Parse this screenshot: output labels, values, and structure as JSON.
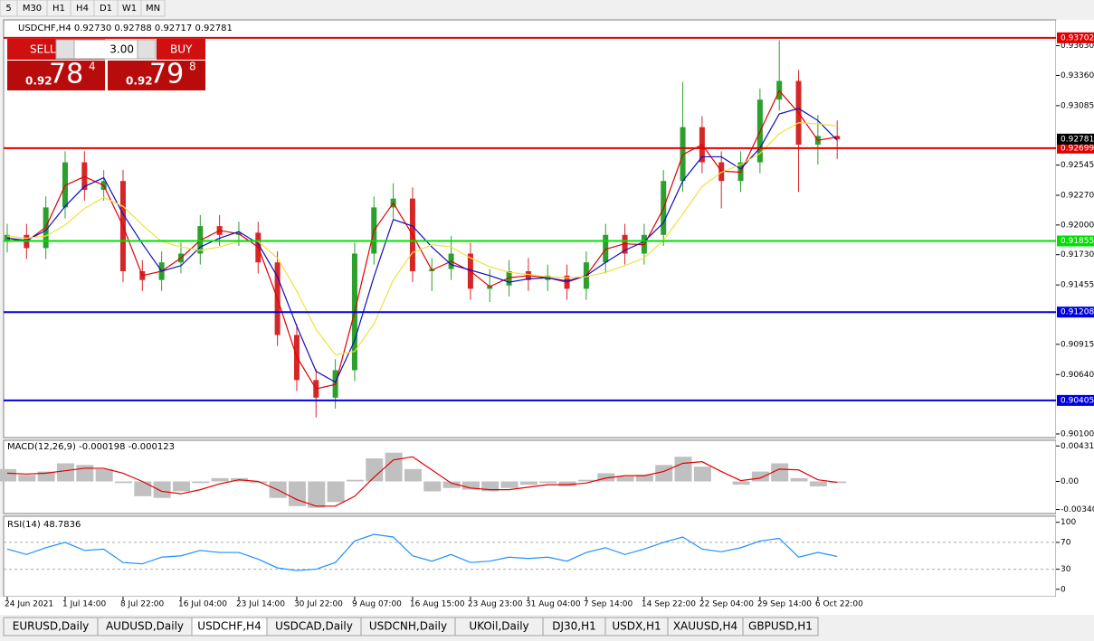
{
  "toolbar": {
    "timeframes": [
      "5",
      "M30",
      "H1",
      "H4",
      "D1",
      "W1",
      "MN"
    ]
  },
  "trade_panel": {
    "sell": "SELL",
    "buy": "BUY",
    "lot": "3.00",
    "sell_price": {
      "big": "0.92",
      "main": "78",
      "small": "4"
    },
    "buy_price": {
      "big": "0.92",
      "main": "79",
      "small": "8"
    }
  },
  "chart_data": [
    {
      "type": "candlestick",
      "title": "USDCHF,H4  0.92730 0.92788 0.92717 0.92781",
      "categories": [
        "24 Jun 2021",
        null,
        null,
        "1 Jul 14:00",
        null,
        null,
        "8 Jul 22:00",
        null,
        null,
        "16 Jul 04:00",
        null,
        null,
        "23 Jul 14:00",
        null,
        null,
        "30 Jul 22:00",
        null,
        null,
        "9 Aug 07:00",
        null,
        null,
        "16 Aug 15:00",
        null,
        null,
        "23 Aug 23:00",
        null,
        null,
        "31 Aug 04:00",
        null,
        null,
        "7 Sep 14:00",
        null,
        null,
        "14 Sep 22:00",
        null,
        null,
        "22 Sep 04:00",
        null,
        null,
        "29 Sep 14:00",
        null,
        null,
        "6 Oct 22:00",
        null
      ],
      "open": [
        0.9185,
        0.9191,
        0.9179,
        0.9216,
        0.9257,
        0.9232,
        0.924,
        0.9158,
        0.915,
        0.9166,
        0.9174,
        0.9199,
        0.9191,
        0.9193,
        0.9166,
        0.91,
        0.9059,
        0.9043,
        0.9068,
        0.9174,
        0.9216,
        0.9224,
        0.9158,
        0.916,
        0.9174,
        0.9142,
        0.9145,
        0.9158,
        0.915,
        0.9154,
        0.9142,
        0.9166,
        0.9191,
        0.9174,
        0.9191,
        0.924,
        0.9289,
        0.9257,
        0.924,
        0.9257,
        0.9314,
        0.9331,
        0.9273,
        0.9281
      ],
      "high": [
        0.9201,
        0.9201,
        0.9226,
        0.9267,
        0.9267,
        0.925,
        0.925,
        0.9168,
        0.9176,
        0.9184,
        0.9209,
        0.9209,
        0.9203,
        0.9203,
        0.9176,
        0.911,
        0.9069,
        0.9078,
        0.9184,
        0.9226,
        0.9238,
        0.9234,
        0.917,
        0.919,
        0.9184,
        0.916,
        0.9168,
        0.917,
        0.9164,
        0.9164,
        0.9176,
        0.9201,
        0.9201,
        0.9201,
        0.925,
        0.933,
        0.9299,
        0.9267,
        0.9267,
        0.9324,
        0.9368,
        0.9341,
        0.93,
        0.9295
      ],
      "low": [
        0.9175,
        0.9169,
        0.9169,
        0.9206,
        0.9222,
        0.9222,
        0.9148,
        0.914,
        0.914,
        0.9156,
        0.9164,
        0.9181,
        0.9181,
        0.9156,
        0.909,
        0.9049,
        0.9025,
        0.9033,
        0.9058,
        0.9164,
        0.9206,
        0.9148,
        0.914,
        0.915,
        0.9132,
        0.913,
        0.9135,
        0.914,
        0.914,
        0.9132,
        0.9132,
        0.9156,
        0.9164,
        0.9164,
        0.9181,
        0.923,
        0.9247,
        0.9215,
        0.923,
        0.9247,
        0.9304,
        0.923,
        0.9255,
        0.926
      ],
      "close": [
        0.9191,
        0.9179,
        0.9216,
        0.9257,
        0.9232,
        0.924,
        0.9158,
        0.915,
        0.9166,
        0.9174,
        0.9199,
        0.9191,
        0.9193,
        0.9166,
        0.91,
        0.9059,
        0.9043,
        0.9068,
        0.9174,
        0.9216,
        0.9224,
        0.9158,
        0.916,
        0.9174,
        0.9142,
        0.9145,
        0.9158,
        0.915,
        0.9154,
        0.9142,
        0.9166,
        0.9191,
        0.9174,
        0.9191,
        0.924,
        0.9289,
        0.9257,
        0.924,
        0.9257,
        0.9314,
        0.9331,
        0.9273,
        0.9281,
        0.9278
      ],
      "up_color": "#2ca02c",
      "down_color": "#d62728",
      "series": [
        {
          "color": "#e00000",
          "values": [
            0.9188,
            0.9185,
            0.9198,
            0.9236,
            0.9244,
            0.9236,
            0.9199,
            0.9154,
            0.9158,
            0.917,
            0.9186,
            0.9195,
            0.9192,
            0.918,
            0.9133,
            0.908,
            0.9051,
            0.9055,
            0.9121,
            0.9195,
            0.922,
            0.9191,
            0.9159,
            0.9167,
            0.9158,
            0.9144,
            0.9152,
            0.9154,
            0.9152,
            0.9148,
            0.9154,
            0.9178,
            0.9183,
            0.9182,
            0.9215,
            0.9264,
            0.9273,
            0.9249,
            0.9248,
            0.9285,
            0.9322,
            0.9302,
            0.9277,
            0.928
          ]
        },
        {
          "color": "#1010c0",
          "values": [
            0.9188,
            0.9186,
            0.9195,
            0.9217,
            0.9235,
            0.9243,
            0.921,
            0.9183,
            0.9158,
            0.9163,
            0.918,
            0.9188,
            0.9194,
            0.9183,
            0.9153,
            0.9108,
            0.9067,
            0.9057,
            0.9095,
            0.9153,
            0.9205,
            0.9199,
            0.918,
            0.9164,
            0.9159,
            0.9154,
            0.9148,
            0.9151,
            0.9152,
            0.9149,
            0.9154,
            0.9166,
            0.9177,
            0.9185,
            0.9202,
            0.924,
            0.9262,
            0.9262,
            0.9251,
            0.927,
            0.9301,
            0.9306,
            0.9295,
            0.9277
          ]
        },
        {
          "color": "#f0e040",
          "values": [
            0.919,
            0.9188,
            0.919,
            0.92,
            0.9215,
            0.9225,
            0.9217,
            0.92,
            0.9185,
            0.918,
            0.9177,
            0.918,
            0.9185,
            0.9185,
            0.917,
            0.914,
            0.9105,
            0.9082,
            0.9085,
            0.911,
            0.915,
            0.9175,
            0.9182,
            0.918,
            0.917,
            0.9162,
            0.9157,
            0.9155,
            0.9153,
            0.9152,
            0.9153,
            0.9157,
            0.9163,
            0.917,
            0.9186,
            0.921,
            0.9235,
            0.9248,
            0.9255,
            0.9265,
            0.9283,
            0.9293,
            0.9292,
            0.929
          ]
        }
      ],
      "ylim": [
        0.90067,
        0.93865
      ],
      "yticks": [
        {
          "value": 0.9363,
          "label": "0.93630"
        },
        {
          "value": 0.9336,
          "label": "0.93360"
        },
        0.93085,
        0.92545,
        {
          "value": 0.9227,
          "label": "0.92270"
        },
        {
          "value": 0.92,
          "label": "0.92000"
        },
        {
          "value": 0.9173,
          "label": "0.91730"
        },
        0.91455,
        0.90915,
        {
          "value": 0.9064,
          "label": "0.90640"
        },
        {
          "value": 0.901,
          "label": "0.90100"
        }
      ],
      "levels": [
        {
          "value": 0.93702,
          "color": "#e00000"
        },
        {
          "value": 0.92699,
          "color": "#e00000"
        },
        {
          "value": 0.91855,
          "color": "#00e000"
        },
        {
          "value": 0.91208,
          "color": "#0000e0"
        },
        {
          "value": 0.90405,
          "color": "#0000e0"
        }
      ],
      "current_price": 0.92781
    },
    {
      "type": "macd",
      "title": "MACD(12,26,9) -0.000198 -0.000123",
      "values": [
        0.0015,
        0.0008,
        0.0012,
        0.0022,
        0.002,
        0.0015,
        -0.0002,
        -0.0018,
        -0.002,
        -0.0012,
        -0.0002,
        0.0004,
        0.0004,
        -0.0002,
        -0.002,
        -0.003,
        -0.0032,
        -0.0025,
        0.0002,
        0.0028,
        0.0035,
        0.0015,
        -0.0012,
        -0.0008,
        -0.001,
        -0.0012,
        -0.0008,
        -0.0004,
        -0.0002,
        -0.0006,
        0.0002,
        0.001,
        0.0006,
        0.0008,
        0.002,
        0.003,
        0.0018,
        0.0,
        -0.0004,
        0.0012,
        0.0022,
        0.0004,
        -0.0006,
        -0.0002
      ],
      "color": "#c0c0c0",
      "signal": [
        0.001,
        0.0009,
        0.001,
        0.0013,
        0.0016,
        0.0016,
        0.001,
        0.0,
        -0.0012,
        -0.0015,
        -0.001,
        -0.0003,
        0.0002,
        0.0,
        -0.001,
        -0.0022,
        -0.003,
        -0.003,
        -0.0018,
        0.0005,
        0.0026,
        0.003,
        0.0014,
        -0.0002,
        -0.0008,
        -0.001,
        -0.001,
        -0.0007,
        -0.0004,
        -0.0004,
        -0.0002,
        0.0004,
        0.0007,
        0.0007,
        0.0012,
        0.0022,
        0.0024,
        0.0012,
        0.0001,
        0.0004,
        0.0015,
        0.0014,
        0.0002,
        -0.0001
      ],
      "signal_color": "#e00000",
      "ylim": [
        -0.0039,
        0.005
      ],
      "yticks": [
        0.00431,
        {
          "value": 0,
          "label": "0.00"
        },
        -0.003405
      ]
    },
    {
      "type": "rsi",
      "title": "RSI(14) 48.7836",
      "values": [
        60,
        52,
        62,
        70,
        58,
        60,
        40,
        38,
        48,
        50,
        58,
        55,
        55,
        45,
        32,
        28,
        30,
        40,
        72,
        82,
        78,
        50,
        42,
        52,
        40,
        42,
        48,
        46,
        48,
        42,
        55,
        62,
        52,
        60,
        70,
        78,
        60,
        56,
        62,
        72,
        76,
        48,
        55,
        49
      ],
      "color": "#1e90ff",
      "ylim": [
        -11,
        109
      ],
      "yticks": [
        100,
        70,
        30,
        0
      ],
      "levels": [
        70,
        30
      ]
    }
  ],
  "tabs": {
    "items": [
      "EURUSD,Daily",
      "AUDUSD,Daily",
      "USDCHF,H4",
      "USDCAD,Daily",
      "USDCNH,Daily",
      "UKOil,Daily",
      "DJ30,H1",
      "USDX,H1",
      "XAUUSD,H4",
      "GBPUSD,H1"
    ],
    "active": 2
  }
}
